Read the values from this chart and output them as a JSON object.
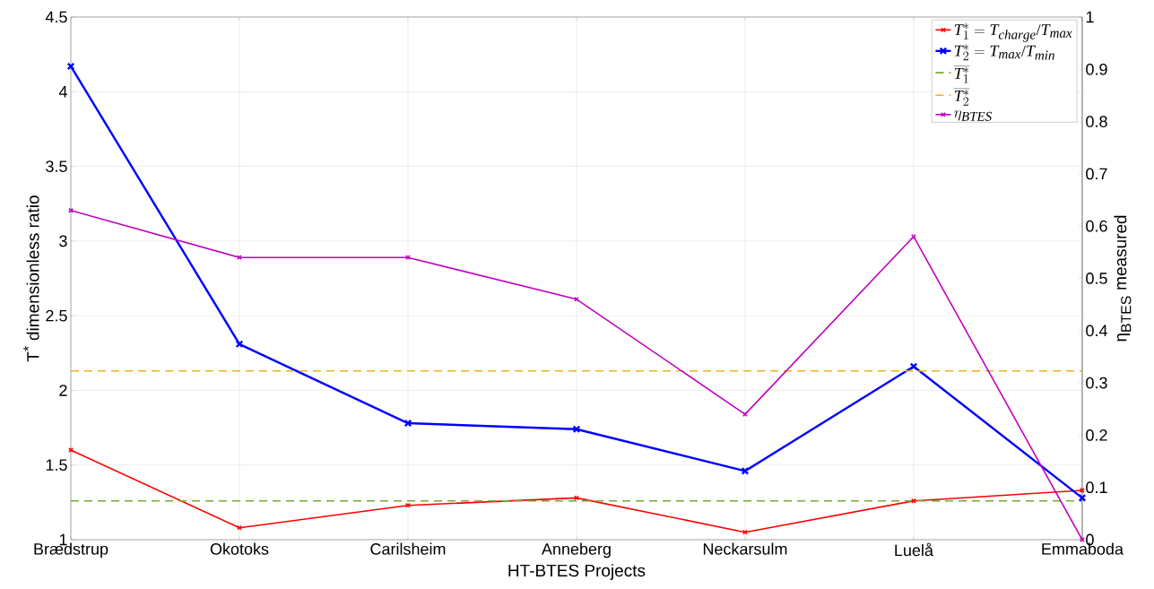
{
  "chart_data": {
    "type": "line",
    "xlabel": "HT-BTES Projects",
    "ylabel": "T$^{*}$ dimensionless ratio",
    "y2label": "η$_{BTES}$ measured",
    "categories": [
      "Brædstrup",
      "Okotoks",
      "Carilsheim",
      "Anneberg",
      "Neckarsulm",
      "Luelå",
      "Emmaboda"
    ],
    "series": [
      {
        "name": "T_1^* = T_{charge}/T_{max}",
        "color": "#ff0000",
        "values": [
          1.6,
          1.08,
          1.23,
          1.28,
          1.05,
          1.26,
          1.33
        ]
      },
      {
        "name": "T_2^* = T_{max}/T_{min}",
        "color": "#0000ff",
        "values": [
          4.17,
          2.31,
          1.78,
          1.74,
          1.46,
          2.16,
          1.28
        ]
      },
      {
        "name": "\\eta_{BTES}",
        "color": "#c000c0",
        "axis": "y2",
        "values": [
          0.63,
          0.54,
          0.54,
          0.46,
          0.24,
          0.58,
          0
        ]
      }
    ],
    "ref_lines": [
      {
        "axis": "y",
        "value": 1.26,
        "label": "\\overline{T_1^*}",
        "color": "#77ac30",
        "line_style": "dashed"
      },
      {
        "axis": "y",
        "value": 2.13,
        "label": "\\overline{T_2^*}",
        "color": "#edb120",
        "line_style": "dashed"
      }
    ],
    "ylim": [
      1,
      4.5
    ],
    "yticks": [
      1,
      1.5,
      2,
      2.5,
      3,
      3.5,
      4,
      4.5
    ],
    "y2lim": [
      0,
      1
    ],
    "y2ticks": [
      0,
      0.1,
      0.2,
      0.3,
      0.4,
      0.5,
      0.6,
      0.7,
      0.8,
      0.9,
      1
    ],
    "grid": true,
    "legend": "top right",
    "marker": "cross",
    "line_style": "solid"
  }
}
